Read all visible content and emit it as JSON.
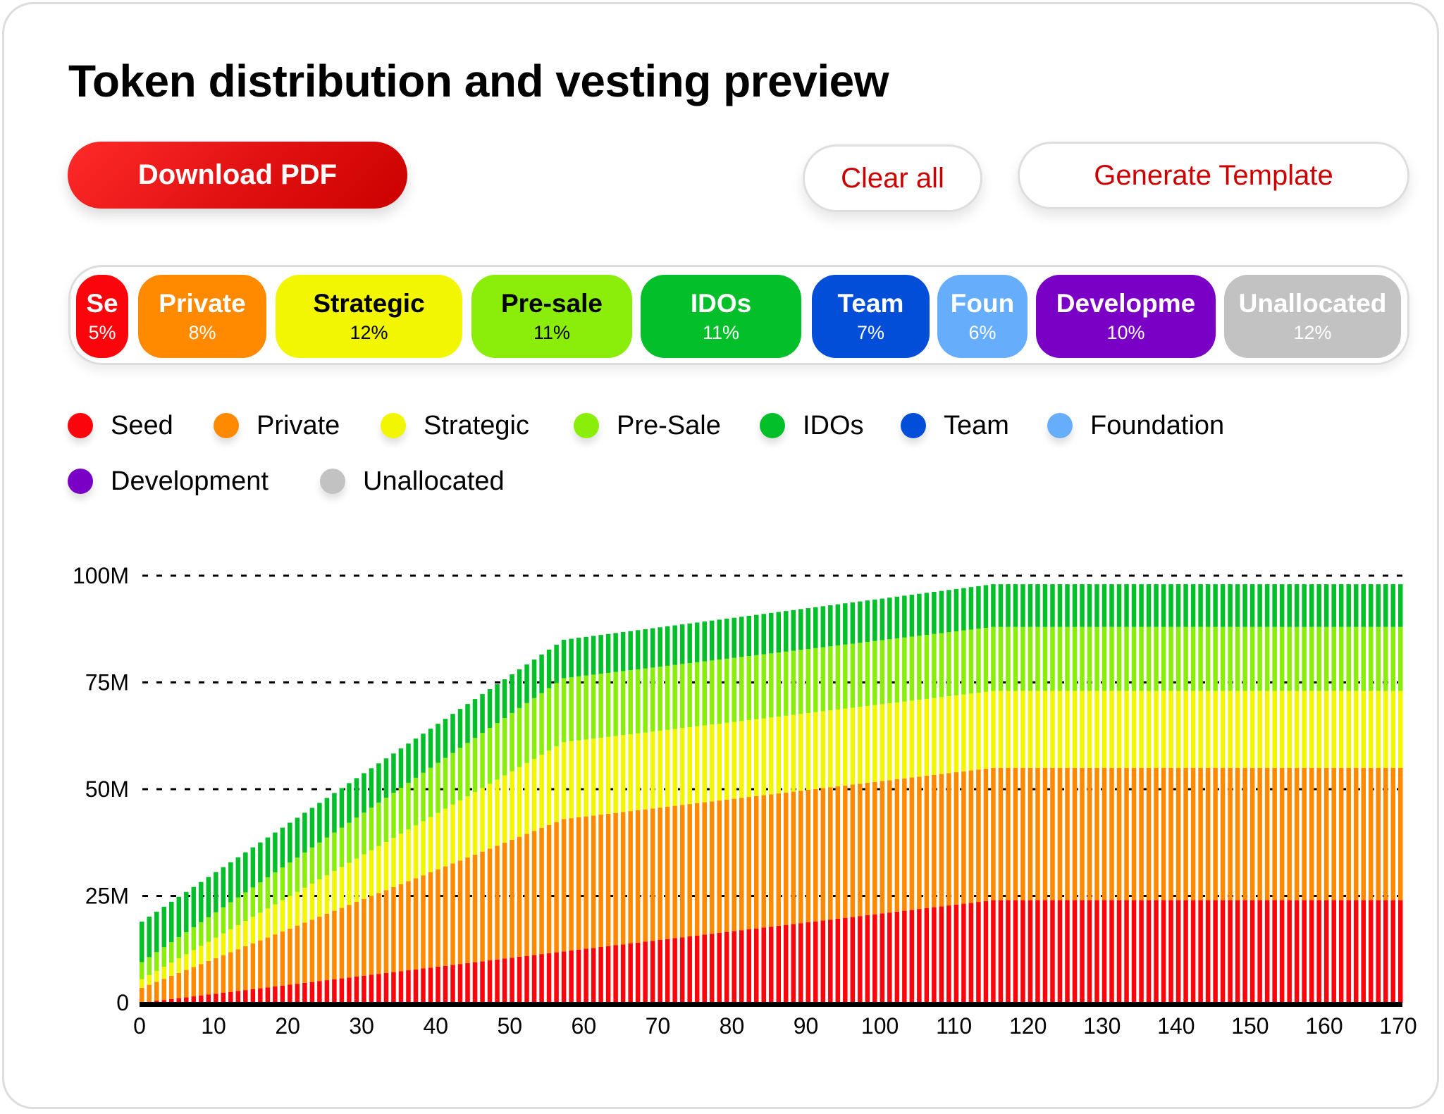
{
  "header": {
    "title": "Token distribution and vesting preview"
  },
  "toolbar": {
    "download_label": "Download PDF",
    "clear_label": "Clear all",
    "generate_label": "Generate Template"
  },
  "allocation_bar": {
    "segments": [
      {
        "label": "Se",
        "percent": "5%",
        "color": "#fa050c",
        "text_color": "#ffffff"
      },
      {
        "label": "Private",
        "percent": "8%",
        "color": "#ff8a00",
        "text_color": "#ffffff"
      },
      {
        "label": "Strategic",
        "percent": "12%",
        "color": "#f2f600",
        "text_color": "#000000"
      },
      {
        "label": "Pre-sale",
        "percent": "11%",
        "color": "#8aed0a",
        "text_color": "#000000"
      },
      {
        "label": "IDOs",
        "percent": "11%",
        "color": "#02bf2a",
        "text_color": "#ffffff"
      },
      {
        "label": "Team",
        "percent": "7%",
        "color": "#024ed9",
        "text_color": "#ffffff"
      },
      {
        "label": "Foun",
        "percent": "6%",
        "color": "#66aefc",
        "text_color": "#ffffff"
      },
      {
        "label": "Developme",
        "percent": "10%",
        "color": "#7a00c6",
        "text_color": "#ffffff"
      },
      {
        "label": "Unallocated",
        "percent": "12%",
        "color": "#c2c2c2",
        "text_color": "#ffffff"
      }
    ]
  },
  "legend": [
    {
      "label": "Seed",
      "color": "#fa050c"
    },
    {
      "label": "Private",
      "color": "#ff8a00"
    },
    {
      "label": "Strategic",
      "color": "#f2f600"
    },
    {
      "label": "Pre-Sale",
      "color": "#8aed0a"
    },
    {
      "label": "IDOs",
      "color": "#02bf2a"
    },
    {
      "label": "Team",
      "color": "#024ed9"
    },
    {
      "label": "Foundation",
      "color": "#66aefc"
    },
    {
      "label": "Development",
      "color": "#7a00c6"
    },
    {
      "label": "Unallocated",
      "color": "#c2c2c2"
    }
  ],
  "chart_data": {
    "type": "bar",
    "stacked": true,
    "title": "",
    "xlabel": "",
    "ylabel": "",
    "xlim": [
      0,
      170
    ],
    "ylim": [
      0,
      100
    ],
    "y_unit": "M",
    "x_ticks": [
      0,
      10,
      20,
      30,
      40,
      50,
      60,
      70,
      80,
      90,
      100,
      110,
      120,
      130,
      140,
      150,
      160,
      170
    ],
    "y_ticks": [
      {
        "value": 0,
        "label": "0"
      },
      {
        "value": 25,
        "label": "25M"
      },
      {
        "value": 50,
        "label": "50M"
      },
      {
        "value": 75,
        "label": "75M"
      },
      {
        "value": 100,
        "label": "100M"
      }
    ],
    "grid": "horizontal-dotted",
    "bar_step": 1,
    "breakpoints_x": [
      0,
      57,
      115,
      170
    ],
    "series": [
      {
        "name": "Seed",
        "color": "#fa050c",
        "values": [
          0,
          12,
          24,
          24
        ]
      },
      {
        "name": "Private",
        "color": "#ff8a00",
        "values": [
          3.5,
          31,
          31,
          31
        ]
      },
      {
        "name": "Strategic",
        "color": "#f2f600",
        "values": [
          2,
          18,
          18,
          18
        ]
      },
      {
        "name": "Pre-Sale",
        "color": "#8aed0a",
        "values": [
          4,
          15,
          15,
          15
        ]
      },
      {
        "name": "IDOs",
        "color": "#02bf2a",
        "values": [
          9.5,
          9,
          10,
          10
        ]
      }
    ]
  }
}
